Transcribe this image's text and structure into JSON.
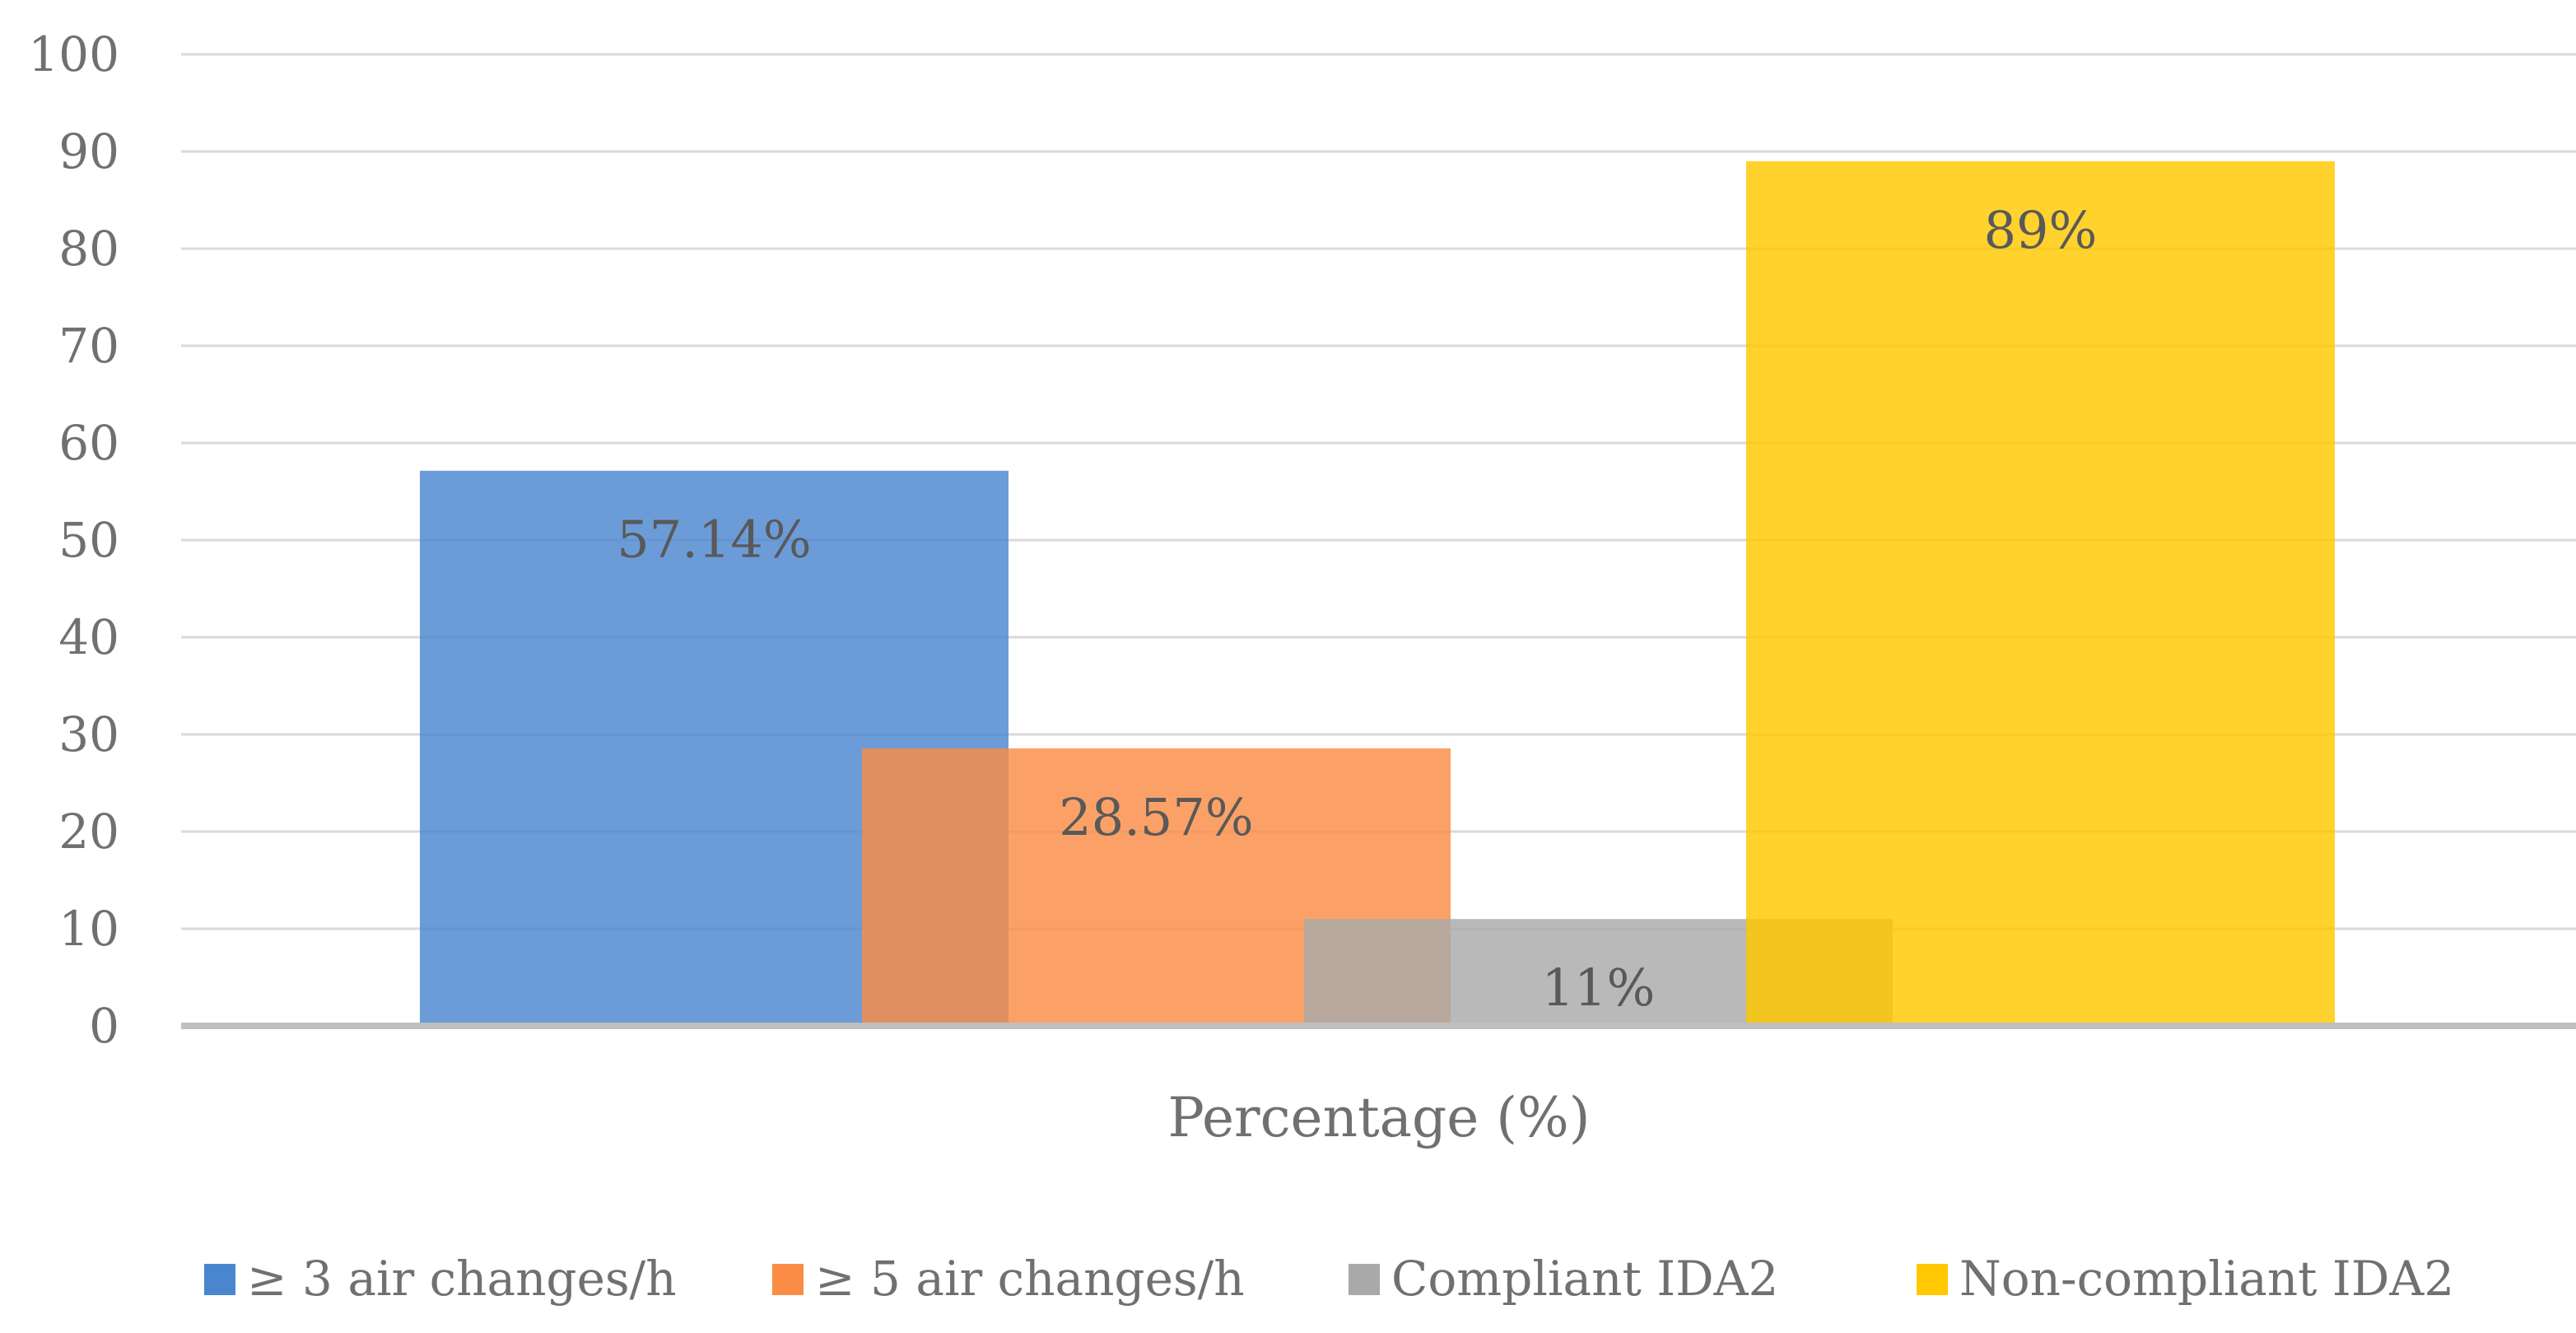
{
  "chart_data": {
    "type": "bar",
    "title": "",
    "xlabel": "Percentage (%)",
    "ylabel": "",
    "ylim": [
      0,
      100
    ],
    "yticks": [
      "0",
      "10",
      "20",
      "30",
      "40",
      "50",
      "60",
      "70",
      "80",
      "90",
      "100"
    ],
    "grid": true,
    "legend_position": "bottom",
    "series": [
      {
        "name": "≥ 3 air changes/h",
        "value": 57.14,
        "label": "57.14%",
        "color": "#4a86d0"
      },
      {
        "name": "≥ 5 air changes/h",
        "value": 28.57,
        "label": "28.57%",
        "color": "#fa8c45"
      },
      {
        "name": "Compliant IDA2",
        "value": 11,
        "label": "11%",
        "color": "#a9a9a9"
      },
      {
        "name": "Non-compliant IDA2",
        "value": 89,
        "label": "89%",
        "color": "#ffc800"
      }
    ]
  }
}
